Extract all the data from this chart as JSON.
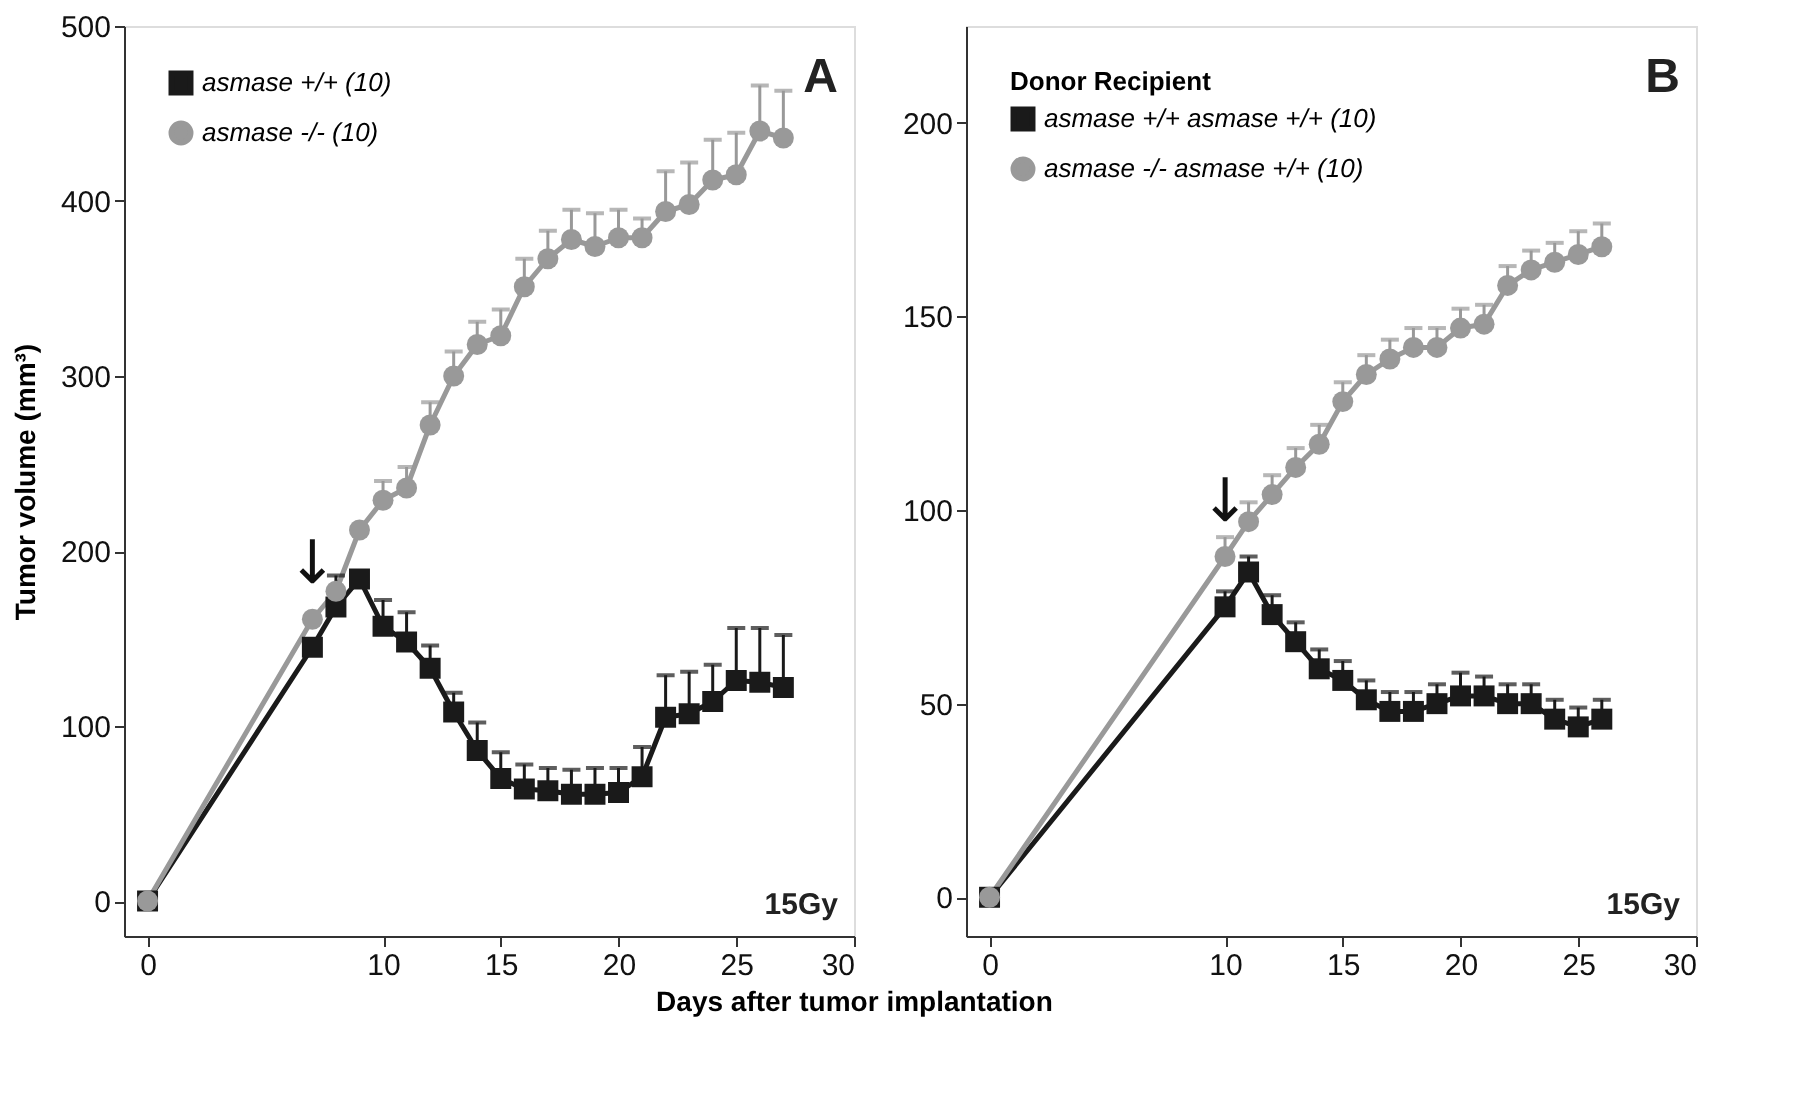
{
  "chart_data": [
    {
      "type": "line",
      "ylabel": "Tumor volume (mm³)",
      "xlabel": "Days after tumor implantation",
      "xlim": [
        -1,
        30
      ],
      "xticks": [
        0,
        10,
        15,
        20,
        25,
        30
      ],
      "ylim": [
        -20,
        500
      ],
      "yticks": [
        0,
        100,
        200,
        300,
        400,
        500
      ],
      "grid": false,
      "legend": "top left",
      "line_style": "solid",
      "x": [
        0,
        7,
        8,
        9,
        10,
        11,
        12,
        13,
        14,
        15,
        16,
        17,
        18,
        19,
        20,
        21,
        22,
        23,
        24,
        25,
        26,
        27
      ],
      "series": [
        {
          "name": "asmase +/+ (10)",
          "color": "#1a1a1a",
          "marker": "square",
          "values": [
            0,
            145,
            168,
            184,
            157,
            148,
            133,
            108,
            86,
            70,
            64,
            63,
            61,
            61,
            62,
            71,
            105,
            107,
            114,
            126,
            125,
            122
          ],
          "errors": [
            null,
            null,
            [
              168,
              186
            ],
            null,
            [
              157,
              172
            ],
            [
              148,
              165
            ],
            [
              133,
              146
            ],
            [
              108,
              119
            ],
            [
              86,
              102
            ],
            [
              70,
              85
            ],
            [
              64,
              78
            ],
            [
              63,
              76
            ],
            [
              61,
              75
            ],
            [
              61,
              76
            ],
            [
              62,
              76
            ],
            [
              71,
              88
            ],
            [
              105,
              129
            ],
            [
              107,
              131
            ],
            [
              114,
              135
            ],
            [
              126,
              156
            ],
            [
              125,
              156
            ],
            [
              122,
              152
            ]
          ]
        },
        {
          "name": "asmase -/- (10)",
          "color": "#999999",
          "marker": "circle",
          "values": [
            0,
            161,
            177,
            212,
            229,
            236,
            272,
            300,
            318,
            323,
            351,
            367,
            378,
            374,
            379,
            379,
            394,
            398,
            412,
            415,
            440,
            436
          ],
          "errors": [
            null,
            null,
            null,
            null,
            [
              229,
              240
            ],
            [
              236,
              248
            ],
            [
              272,
              285
            ],
            [
              300,
              314
            ],
            [
              318,
              331
            ],
            [
              323,
              338
            ],
            [
              351,
              367
            ],
            [
              367,
              383
            ],
            [
              378,
              395
            ],
            [
              374,
              393
            ],
            [
              379,
              395
            ],
            [
              379,
              390
            ],
            [
              394,
              417
            ],
            [
              398,
              422
            ],
            [
              412,
              435
            ],
            [
              415,
              439
            ],
            [
              440,
              466
            ],
            [
              436,
              463
            ]
          ]
        }
      ],
      "annotations": [
        "A",
        "15Gy",
        "↓"
      ]
    },
    {
      "type": "line",
      "xlim": [
        -1,
        30
      ],
      "xticks": [
        0,
        10,
        15,
        20,
        25,
        30
      ],
      "ylim": [
        -10,
        225
      ],
      "yticks": [
        0,
        50,
        100,
        150,
        200
      ],
      "grid": false,
      "legend": "top left",
      "legend_title": "Donor Recipient",
      "line_style": "solid",
      "x": [
        0,
        10,
        11,
        12,
        13,
        14,
        15,
        16,
        17,
        18,
        19,
        20,
        21,
        22,
        23,
        24,
        25,
        26
      ],
      "series": [
        {
          "name": "asmase +/+ asmase +/+ (10)",
          "color": "#1a1a1a",
          "marker": "square",
          "values": [
            0,
            75,
            84,
            73,
            66,
            59,
            56,
            51,
            48,
            48,
            50,
            52,
            52,
            50,
            50,
            46,
            44,
            46
          ],
          "errors": [
            null,
            [
              75,
              79
            ],
            [
              84,
              88
            ],
            [
              73,
              78
            ],
            [
              66,
              71
            ],
            [
              59,
              64
            ],
            [
              56,
              61
            ],
            [
              51,
              56
            ],
            [
              48,
              53
            ],
            [
              48,
              53
            ],
            [
              50,
              55
            ],
            [
              52,
              58
            ],
            [
              52,
              57
            ],
            [
              50,
              55
            ],
            [
              50,
              55
            ],
            [
              46,
              51
            ],
            [
              44,
              49
            ],
            [
              46,
              51
            ]
          ]
        },
        {
          "name": "asmase -/- asmase +/+ (10)",
          "color": "#999999",
          "marker": "circle",
          "values": [
            0,
            88,
            97,
            104,
            111,
            117,
            128,
            135,
            139,
            142,
            142,
            147,
            148,
            158,
            162,
            164,
            166,
            168
          ],
          "errors": [
            null,
            [
              88,
              93
            ],
            [
              97,
              102
            ],
            [
              104,
              109
            ],
            [
              111,
              116
            ],
            [
              117,
              122
            ],
            [
              128,
              133
            ],
            [
              135,
              140
            ],
            [
              139,
              144
            ],
            [
              142,
              147
            ],
            [
              142,
              147
            ],
            [
              147,
              152
            ],
            [
              148,
              153
            ],
            [
              158,
              163
            ],
            [
              162,
              167
            ],
            [
              164,
              169
            ],
            [
              166,
              172
            ],
            [
              168,
              174
            ]
          ]
        }
      ],
      "annotations": [
        "B",
        "15Gy",
        "↓"
      ]
    }
  ]
}
